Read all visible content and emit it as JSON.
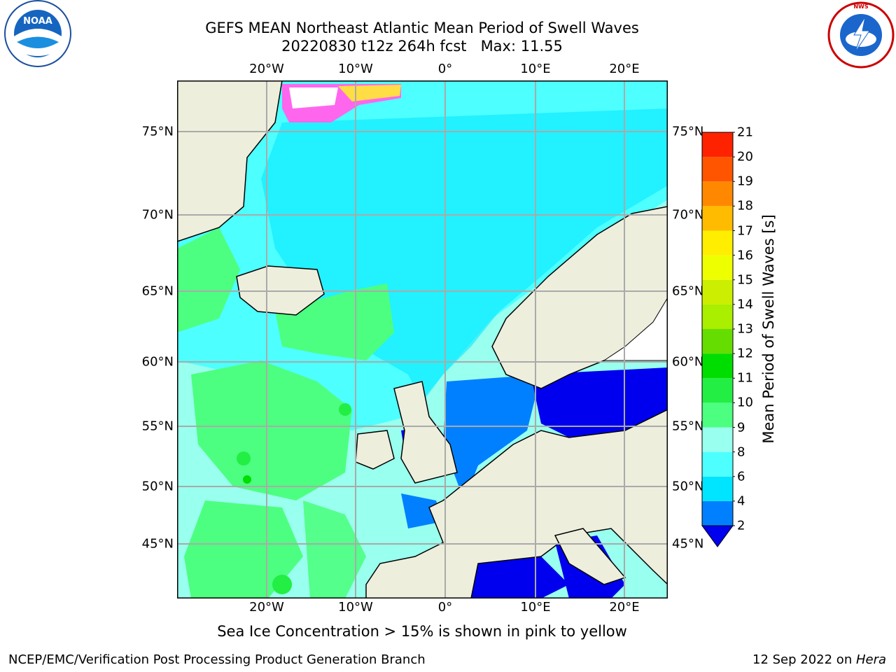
{
  "header": {
    "title_line1": "GEFS MEAN Northeast Atlantic Mean Period of Swell Waves",
    "title_line2": "20220830 t12z 264h fcst   Max: 11.55"
  },
  "logos": {
    "noaa_text": "NOAA",
    "noaa_ring_text": "NATIONAL OCEANIC AND ATMOSPHERIC ADMINISTRATION · U.S. DEPARTMENT OF COMMERCE",
    "nws_ring_text": "NATIONAL WEATHER SERVICE",
    "noaa_icon": "noaa-seagull-logo",
    "nws_icon": "nws-lightning-cloud-logo"
  },
  "map": {
    "lon_labels": [
      "20°W",
      "10°W",
      "0°",
      "10°E",
      "20°E"
    ],
    "lat_labels": [
      "75°N",
      "70°N",
      "65°N",
      "60°N",
      "55°N",
      "50°N",
      "45°N"
    ],
    "lon_range": [
      -30,
      25
    ],
    "lat_range": [
      41,
      78
    ],
    "gridlines": true,
    "land_color": "#eeeedd",
    "sea_ice_note": "Sea Ice Concentration > 15% is shown in pink to yellow"
  },
  "colorbar": {
    "label": "Mean Period of Swell Waves [s]",
    "ticks": [
      "21",
      "20",
      "19",
      "18",
      "17",
      "16",
      "15",
      "14",
      "13",
      "12",
      "11",
      "10",
      "9",
      "8",
      "6",
      "4",
      "2"
    ],
    "levels": [
      2,
      4,
      6,
      8,
      9,
      10,
      11,
      12,
      13,
      14,
      15,
      16,
      17,
      18,
      19,
      20,
      21
    ],
    "colors": [
      "#0080ff",
      "#00e5ff",
      "#4dffff",
      "#99ffee",
      "#4dff80",
      "#22ee44",
      "#00dd00",
      "#66dd00",
      "#aaee00",
      "#ccee00",
      "#eeff00",
      "#ffee00",
      "#ffbb00",
      "#ff8800",
      "#ff5500",
      "#ff2200"
    ],
    "extend_min_color": "#0000ee"
  },
  "footer": {
    "left": "NCEP/EMC/Verification Post Processing Product Generation Branch",
    "right_prefix": "12 Sep 2022 on ",
    "right_machine": "Hera"
  }
}
